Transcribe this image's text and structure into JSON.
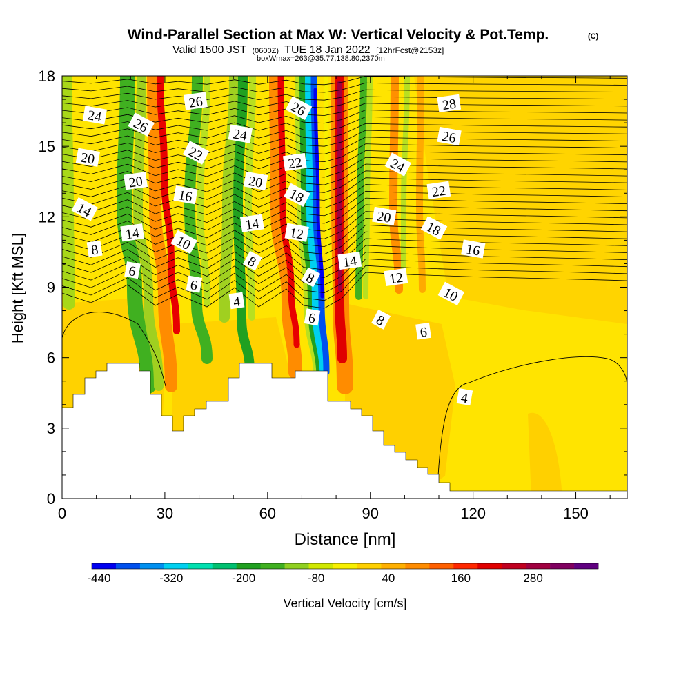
{
  "chart_data": {
    "type": "heatmap",
    "title": "Wind-Parallel Section at Max W: Vertical Velocity & Pot.Temp.",
    "title_mark": "(C)",
    "subtitle": {
      "valid": "Valid 1500 JST",
      "utc": "(0600Z)",
      "date": "TUE 18 Jan 2022",
      "fcst": "[12hrFcst@2153z]"
    },
    "box_info": "boxWmax=263@35.77,138.80,2370m",
    "xlabel": "Distance [nm]",
    "ylabel": "Height [Kft MSL]",
    "xlim": [
      0,
      165
    ],
    "ylim": [
      0,
      18
    ],
    "x_ticks": [
      "0",
      "30",
      "60",
      "90",
      "120",
      "150"
    ],
    "y_ticks": [
      "0",
      "3",
      "6",
      "9",
      "12",
      "15",
      "18"
    ],
    "colorbar": {
      "label": "Vertical Velocity [cm/s]",
      "tick_labels": [
        "-440",
        "-320",
        "-200",
        "-80",
        "40",
        "160",
        "280"
      ],
      "colors": [
        "#0000f0",
        "#0050ee",
        "#0090f0",
        "#00d0f0",
        "#00e0b0",
        "#00c070",
        "#20a020",
        "#40b020",
        "#90d020",
        "#d0e800",
        "#f8f000",
        "#ffd000",
        "#ffb000",
        "#ff8c00",
        "#ff6000",
        "#ff2800",
        "#e00000",
        "#c00020",
        "#a00040",
        "#800060",
        "#600080"
      ]
    },
    "contour_labels": [
      {
        "text": "24",
        "x": 9.5,
        "y": 16.3
      },
      {
        "text": "26",
        "x": 23,
        "y": 15.9
      },
      {
        "text": "26",
        "x": 39,
        "y": 16.9
      },
      {
        "text": "24",
        "x": 52,
        "y": 15.5
      },
      {
        "text": "26",
        "x": 69,
        "y": 16.6
      },
      {
        "text": "28",
        "x": 113,
        "y": 16.8
      },
      {
        "text": "20",
        "x": 7.5,
        "y": 14.5
      },
      {
        "text": "22",
        "x": 39,
        "y": 14.7
      },
      {
        "text": "22",
        "x": 68,
        "y": 14.3
      },
      {
        "text": "26",
        "x": 113,
        "y": 15.4
      },
      {
        "text": "24",
        "x": 98,
        "y": 14.2
      },
      {
        "text": "20",
        "x": 21.5,
        "y": 13.5
      },
      {
        "text": "20",
        "x": 56.5,
        "y": 13.5
      },
      {
        "text": "18",
        "x": 68.5,
        "y": 12.9
      },
      {
        "text": "22",
        "x": 110,
        "y": 13.1
      },
      {
        "text": "16",
        "x": 36,
        "y": 12.9
      },
      {
        "text": "14",
        "x": 6.5,
        "y": 12.3
      },
      {
        "text": "14",
        "x": 55.5,
        "y": 11.7
      },
      {
        "text": "20",
        "x": 94,
        "y": 12.0
      },
      {
        "text": "18",
        "x": 108.5,
        "y": 11.5
      },
      {
        "text": "14",
        "x": 20.5,
        "y": 11.3
      },
      {
        "text": "12",
        "x": 68.5,
        "y": 11.3
      },
      {
        "text": "10",
        "x": 35.5,
        "y": 10.9
      },
      {
        "text": "8",
        "x": 9.5,
        "y": 10.6
      },
      {
        "text": "16",
        "x": 120,
        "y": 10.6
      },
      {
        "text": "8",
        "x": 55.5,
        "y": 10.1
      },
      {
        "text": "14",
        "x": 84,
        "y": 10.1
      },
      {
        "text": "6",
        "x": 20.5,
        "y": 9.7
      },
      {
        "text": "8",
        "x": 72.5,
        "y": 9.4
      },
      {
        "text": "12",
        "x": 97.5,
        "y": 9.4
      },
      {
        "text": "6",
        "x": 38.5,
        "y": 9.1
      },
      {
        "text": "10",
        "x": 113.5,
        "y": 8.7
      },
      {
        "text": "4",
        "x": 51,
        "y": 8.4
      },
      {
        "text": "6",
        "x": 73,
        "y": 7.7
      },
      {
        "text": "8",
        "x": 93,
        "y": 7.6
      },
      {
        "text": "6",
        "x": 105.5,
        "y": 7.1
      },
      {
        "text": "4",
        "x": 117.5,
        "y": 4.3
      }
    ]
  }
}
